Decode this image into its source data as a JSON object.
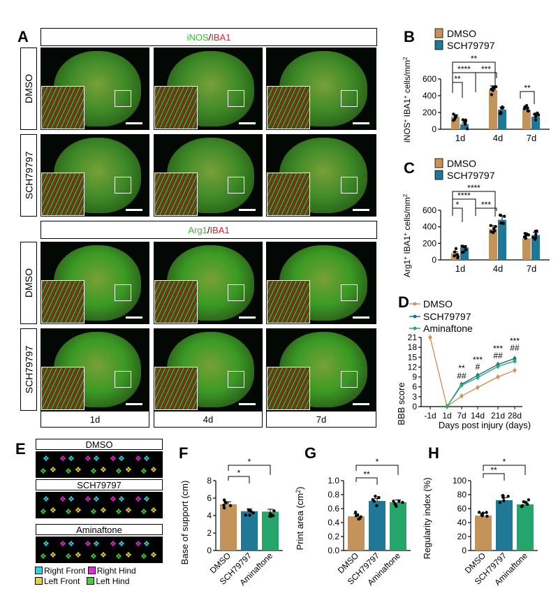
{
  "panels": {
    "A": "A",
    "B": "B",
    "C": "C",
    "D": "D",
    "E": "E",
    "F": "F",
    "G": "G",
    "H": "H"
  },
  "panel_a": {
    "header_top": {
      "green": "iNOS",
      "sep": "/",
      "red": "IBA1"
    },
    "header_bottom": {
      "green": "Arg1",
      "sep": "/",
      "red": "IBA1"
    },
    "rows": [
      "DMSO",
      "SCH79797",
      "DMSO",
      "SCH79797"
    ],
    "columns": [
      "1d",
      "4d",
      "7d"
    ]
  },
  "panel_e": {
    "conditions": [
      "DMSO",
      "SCH79797",
      "Aminaftone"
    ],
    "legend": [
      {
        "label": "Right Front",
        "color": "#2ad4e6"
      },
      {
        "label": "Right Hind",
        "color": "#e62ad4"
      },
      {
        "label": "Left Front",
        "color": "#e6d42a"
      },
      {
        "label": "Left Hind",
        "color": "#3ad43a"
      }
    ]
  },
  "colors": {
    "dmso": "#c8955a",
    "sch": "#1b6f8a",
    "amin": "#2aa86e",
    "dmso_bar": "#c4935a",
    "sch_bar": "#1f7896",
    "amin_bar": "#25a56b"
  },
  "chart_data": [
    {
      "id": "B",
      "type": "bar",
      "ylabel": "iNOS+ IBA1+ cells/mm2",
      "ylabel_parts": {
        "m1": "iNOS",
        "s1": "+",
        "m2": " IBA1",
        "s2": "+",
        "m3": " cells/mm",
        "s3": "2"
      },
      "categories": [
        "1d",
        "4d",
        "7d"
      ],
      "ylim": [
        0,
        600
      ],
      "yticks": [
        0,
        200,
        400,
        600
      ],
      "legend": [
        "DMSO",
        "SCH79797"
      ],
      "series": [
        {
          "name": "DMSO",
          "values": [
            150,
            470,
            235
          ]
        },
        {
          "name": "SCH79797",
          "values": [
            60,
            235,
            150
          ]
        }
      ],
      "significance": [
        "**",
        "****",
        "***",
        "**",
        "**"
      ]
    },
    {
      "id": "C",
      "type": "bar",
      "ylabel": "Arg1+ IBA1+ cells/mm2",
      "ylabel_parts": {
        "m1": "Arg1",
        "s1": "+",
        "m2": " IBA1",
        "s2": "+",
        "m3": " cells/mm",
        "s3": "2"
      },
      "categories": [
        "1d",
        "4d",
        "7d"
      ],
      "ylim": [
        0,
        600
      ],
      "yticks": [
        0,
        200,
        400,
        600
      ],
      "legend": [
        "DMSO",
        "SCH79797"
      ],
      "series": [
        {
          "name": "DMSO",
          "values": [
            80,
            375,
            260
          ]
        },
        {
          "name": "SCH79797",
          "values": [
            150,
            485,
            300
          ]
        }
      ],
      "significance": [
        "*",
        "****",
        "***",
        "****"
      ]
    },
    {
      "id": "D",
      "type": "line",
      "xlabel": "Days post injury (days)",
      "ylabel": "BBB score",
      "categories": [
        "-1d",
        "1d",
        "7d",
        "14d",
        "21d",
        "28d"
      ],
      "ylim": [
        0,
        21
      ],
      "yticks": [
        0,
        3,
        6,
        9,
        12,
        15,
        18,
        21
      ],
      "legend": [
        "DMSO",
        "SCH79797",
        "Aminaftone"
      ],
      "series": [
        {
          "name": "DMSO",
          "values": [
            21,
            0,
            3.2,
            5.8,
            9,
            11
          ]
        },
        {
          "name": "SCH79797",
          "values": [
            null,
            0,
            6.8,
            9.5,
            12.8,
            14.6
          ]
        },
        {
          "name": "Aminaftone",
          "values": [
            null,
            0,
            6.5,
            8.8,
            12.2,
            13.8
          ]
        }
      ],
      "significance_top": [
        "**",
        "***",
        "***",
        "***"
      ],
      "significance_bottom": [
        "##",
        "#",
        "##",
        "##"
      ]
    },
    {
      "id": "F",
      "type": "bar",
      "ylabel": "Base of support (cm)",
      "categories": [
        "DMSO",
        "SCH79797",
        "Aminaftone"
      ],
      "ylim": [
        0,
        8
      ],
      "yticks": [
        0,
        2,
        4,
        6,
        8
      ],
      "values": [
        5.3,
        4.5,
        4.45
      ],
      "significance": [
        "*",
        "*"
      ]
    },
    {
      "id": "G",
      "type": "bar",
      "ylabel": "Print area (cm2)",
      "ylabel_parts": {
        "m1": "Print area (cm",
        "s1": "2",
        "m2": ")"
      },
      "categories": [
        "DMSO",
        "SCH79797",
        "Aminaftone"
      ],
      "ylim": [
        0,
        1.0
      ],
      "yticks": [
        0.0,
        0.2,
        0.4,
        0.6,
        0.8,
        1.0
      ],
      "values": [
        0.49,
        0.71,
        0.69
      ],
      "significance": [
        "**",
        "*"
      ]
    },
    {
      "id": "H",
      "type": "bar",
      "ylabel": "Regularity index (%)",
      "categories": [
        "DMSO",
        "SCH79797",
        "Aminaftone"
      ],
      "ylim": [
        0,
        100
      ],
      "yticks": [
        0,
        20,
        40,
        60,
        80,
        100
      ],
      "values": [
        50,
        72,
        66
      ],
      "significance": [
        "**",
        "*"
      ]
    }
  ]
}
